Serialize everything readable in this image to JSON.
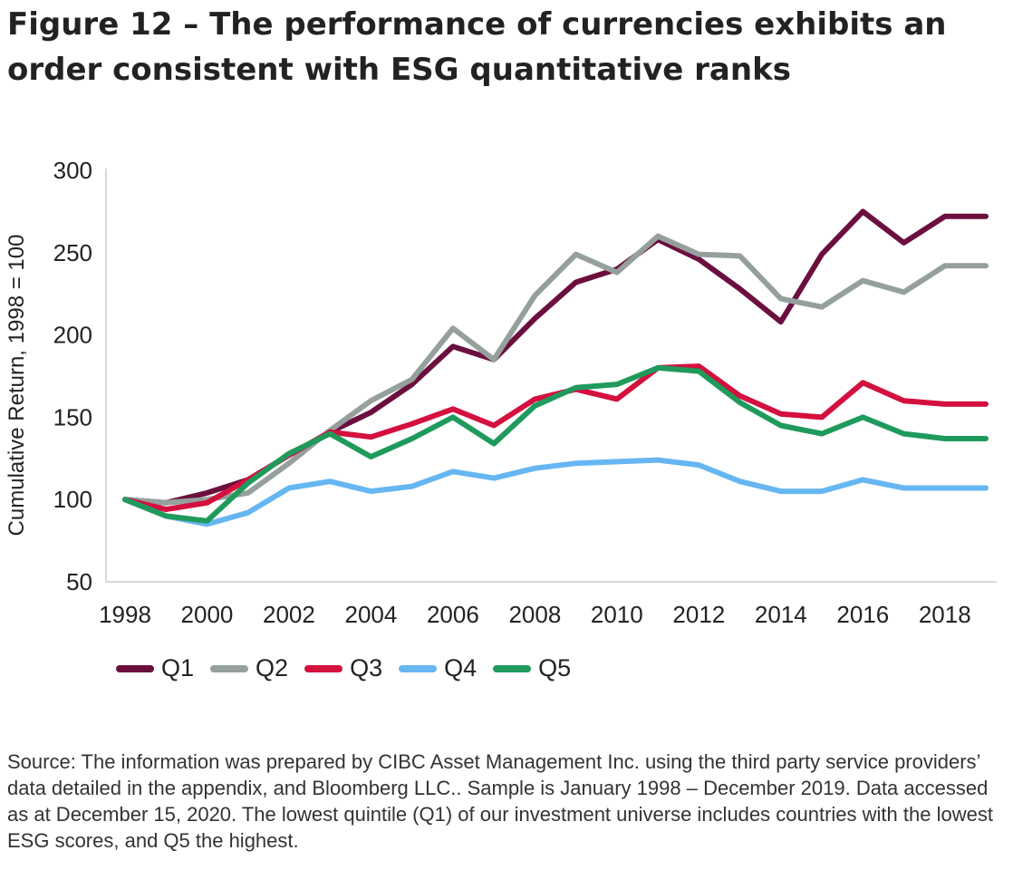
{
  "header": {
    "title": "Figure 12 – The performance of currencies exhibits an order consistent with ESG quantitative ranks"
  },
  "footer": {
    "source": "Source: The information was prepared by CIBC Asset Management Inc. using the third party service providers’ data detailed in the appendix, and Bloomberg LLC.. Sample is January 1998 – December 2019. Data accessed as at December 15, 2020. The lowest quintile (Q1) of our investment universe includes countries with the lowest ESG scores, and Q5 the highest."
  },
  "chart_data": {
    "type": "line",
    "title": "Figure 12 – The performance of currencies exhibits an order consistent with ESG quantitative ranks",
    "xlabel": "",
    "ylabel": "Cumulative Return, 1998 = 100",
    "x": [
      1998,
      1999,
      2000,
      2001,
      2002,
      2003,
      2004,
      2005,
      2006,
      2007,
      2008,
      2009,
      2010,
      2011,
      2012,
      2013,
      2014,
      2015,
      2016,
      2017,
      2018,
      2019
    ],
    "x_tick_labels": [
      "1998",
      "2000",
      "2002",
      "2004",
      "2006",
      "2008",
      "2010",
      "2012",
      "2014",
      "2016",
      "2018"
    ],
    "x_tick_values": [
      1998,
      2000,
      2002,
      2004,
      2006,
      2008,
      2010,
      2012,
      2014,
      2016,
      2018
    ],
    "xlim": [
      1998,
      2019
    ],
    "ylim": [
      50,
      300
    ],
    "y_ticks": [
      50,
      100,
      150,
      200,
      250,
      300
    ],
    "grid": false,
    "legend_position": "bottom-left",
    "series": [
      {
        "name": "Q1",
        "color": "#6B0F3F",
        "values": [
          100,
          98,
          104,
          112,
          127,
          141,
          153,
          170,
          193,
          185,
          210,
          232,
          240,
          258,
          246,
          228,
          208,
          249,
          275,
          256,
          272,
          272
        ]
      },
      {
        "name": "Q2",
        "color": "#95A09D",
        "values": [
          100,
          98,
          100,
          104,
          122,
          142,
          160,
          173,
          204,
          185,
          224,
          249,
          238,
          260,
          249,
          248,
          222,
          217,
          233,
          226,
          242,
          242
        ]
      },
      {
        "name": "Q3",
        "color": "#D4103F",
        "values": [
          100,
          94,
          98,
          112,
          127,
          141,
          138,
          146,
          155,
          145,
          161,
          167,
          161,
          180,
          181,
          163,
          152,
          150,
          171,
          160,
          158,
          158
        ]
      },
      {
        "name": "Q4",
        "color": "#66B6F2",
        "values": [
          100,
          90,
          85,
          92,
          107,
          111,
          105,
          108,
          117,
          113,
          119,
          122,
          123,
          124,
          121,
          111,
          105,
          105,
          112,
          107,
          107,
          107
        ]
      },
      {
        "name": "Q5",
        "color": "#1F9A5C",
        "values": [
          100,
          90,
          87,
          110,
          128,
          140,
          126,
          137,
          150,
          134,
          157,
          168,
          170,
          180,
          178,
          159,
          145,
          140,
          150,
          140,
          137,
          137
        ]
      }
    ]
  }
}
